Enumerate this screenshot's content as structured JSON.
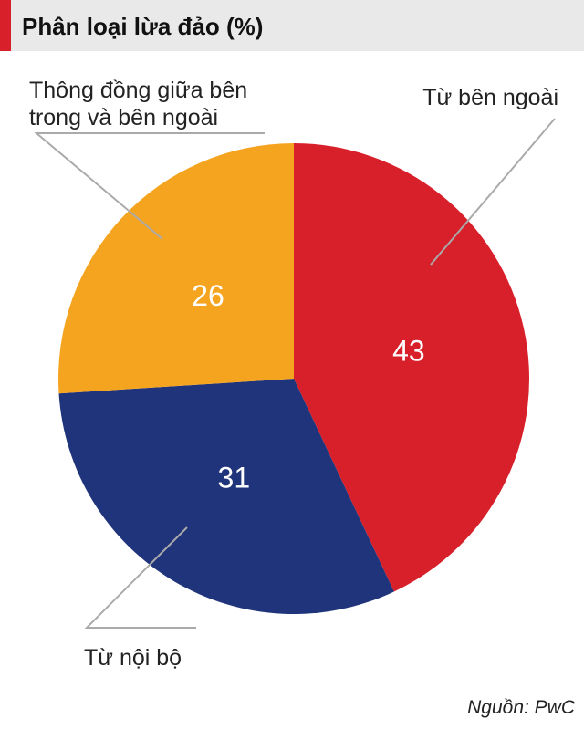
{
  "chart_data": {
    "type": "pie",
    "title": "Phân loại lừa đảo (%)",
    "categories": [
      "Từ bên ngoài",
      "Từ nội bộ",
      "Thông đồng giữa bên trong và bên ngoài"
    ],
    "values": [
      43,
      31,
      26
    ],
    "colors": [
      "#d8202a",
      "#1f347a",
      "#f5a41f"
    ],
    "source": "Nguồn: PwC"
  }
}
